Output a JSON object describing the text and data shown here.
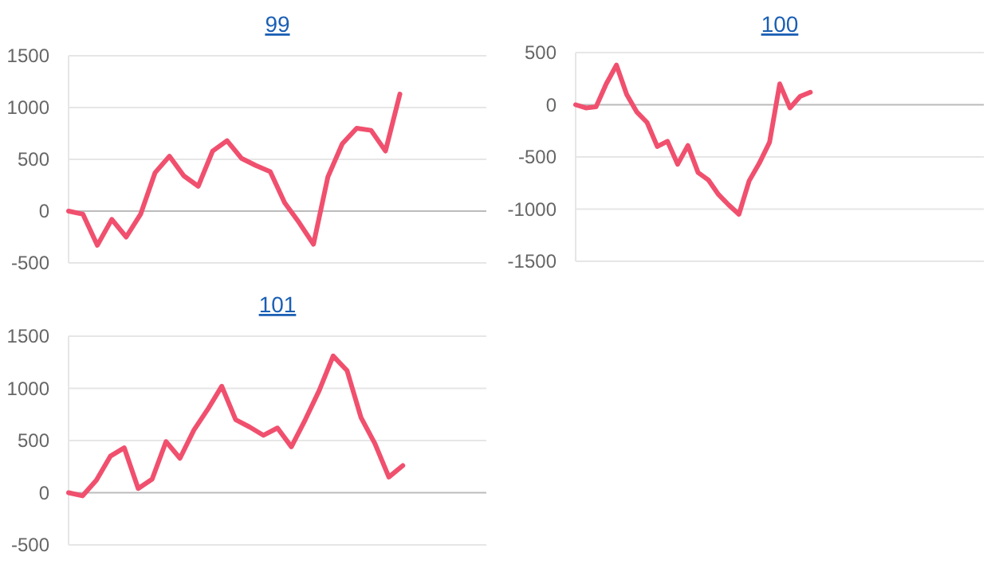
{
  "chart_data": [
    {
      "type": "line",
      "title": "99",
      "categories": [
        null,
        null,
        null,
        null,
        null,
        null,
        null,
        null,
        null,
        null,
        null,
        null,
        null,
        null,
        null,
        null,
        null,
        null,
        null,
        null,
        null,
        null,
        null,
        null,
        null,
        null,
        null,
        null,
        null,
        null
      ],
      "series": [
        {
          "color": "#f0506e",
          "values": [
            0,
            -30,
            -330,
            -80,
            -250,
            -30,
            370,
            530,
            340,
            240,
            580,
            680,
            510,
            440,
            380,
            80,
            -110,
            -320,
            330,
            650,
            800,
            780,
            580,
            1130,
            null,
            null,
            null,
            null,
            null,
            null
          ]
        }
      ],
      "ylim": [
        -500,
        1500
      ],
      "yticks": [
        -500,
        0,
        500,
        1000,
        1500
      ],
      "grid": "y",
      "tick_labels": "y",
      "marker": "none"
    },
    {
      "type": "line",
      "title": "100",
      "categories": [
        null,
        null,
        null,
        null,
        null,
        null,
        null,
        null,
        null,
        null,
        null,
        null,
        null,
        null,
        null,
        null,
        null,
        null,
        null,
        null,
        null,
        null,
        null,
        null,
        null,
        null,
        null,
        null,
        null,
        null,
        null,
        null,
        null,
        null,
        null,
        null,
        null,
        null,
        null,
        null,
        null
      ],
      "series": [
        {
          "color": "#f0506e",
          "values": [
            0,
            -30,
            -20,
            200,
            380,
            100,
            -70,
            -170,
            -400,
            -350,
            -570,
            -390,
            -650,
            -720,
            -860,
            -960,
            -1050,
            -730,
            -560,
            -360,
            200,
            -30,
            80,
            120,
            null,
            null,
            null,
            null,
            null,
            null,
            null,
            null,
            null,
            null,
            null,
            null,
            null,
            null,
            null,
            null,
            null
          ]
        }
      ],
      "ylim": [
        -1500,
        500
      ],
      "yticks": [
        -1500,
        -1000,
        -500,
        0,
        500
      ],
      "grid": "y",
      "tick_labels": "y",
      "marker": "none"
    },
    {
      "type": "line",
      "title": "101",
      "categories": [
        null,
        null,
        null,
        null,
        null,
        null,
        null,
        null,
        null,
        null,
        null,
        null,
        null,
        null,
        null,
        null,
        null,
        null,
        null,
        null,
        null,
        null,
        null,
        null,
        null,
        null,
        null,
        null,
        null,
        null,
        null
      ],
      "series": [
        {
          "color": "#f0506e",
          "values": [
            0,
            -30,
            120,
            350,
            430,
            40,
            130,
            490,
            330,
            600,
            800,
            1020,
            700,
            630,
            550,
            620,
            440,
            700,
            980,
            1310,
            1170,
            720,
            470,
            150,
            260,
            null,
            null,
            null,
            null,
            null,
            null
          ]
        }
      ],
      "ylim": [
        -500,
        1500
      ],
      "yticks": [
        -500,
        0,
        500,
        1000,
        1500
      ],
      "grid": "y",
      "tick_labels": "y",
      "marker": "none"
    }
  ]
}
